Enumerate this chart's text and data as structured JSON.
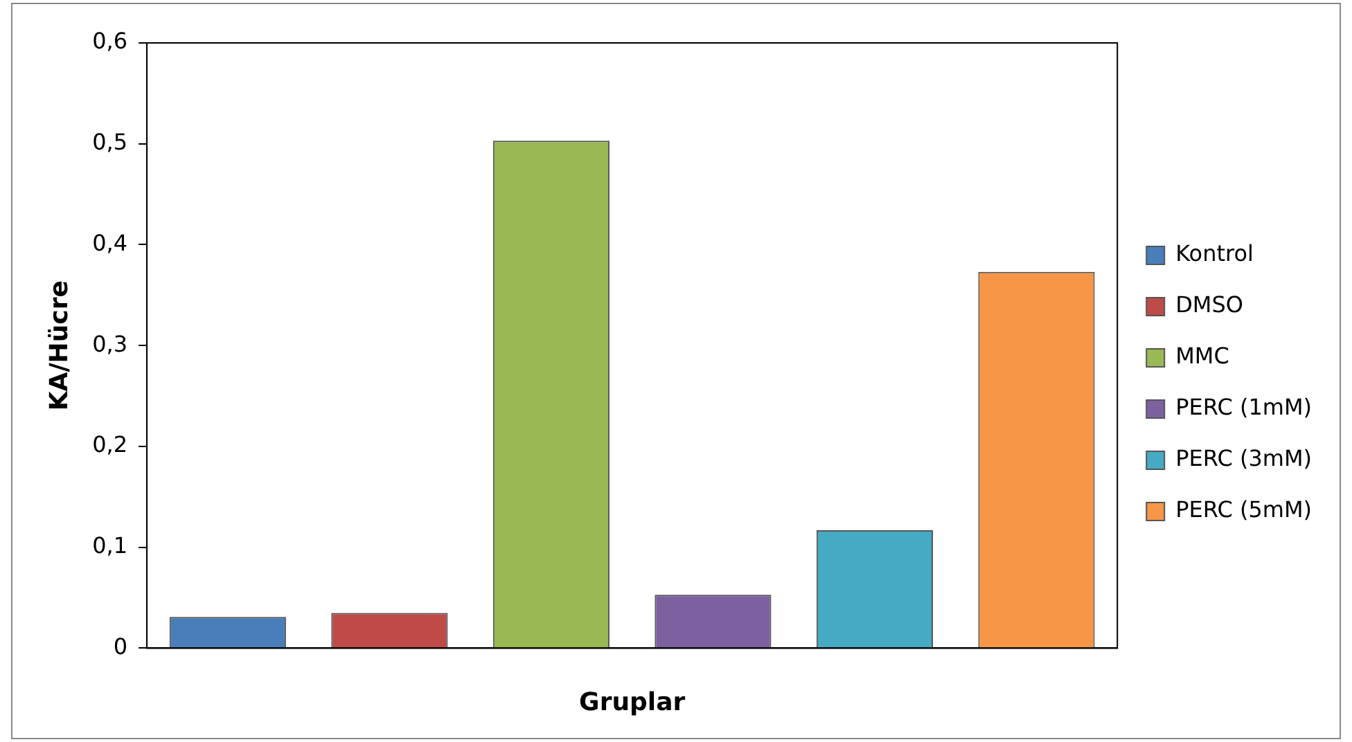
{
  "chart_data": {
    "type": "bar",
    "xlabel": "Gruplar",
    "ylabel": "KA/Hücre",
    "categories": [
      null
    ],
    "series": [
      {
        "name": "Kontrol",
        "color": "#4a7ebb",
        "values": [
          0.031
        ]
      },
      {
        "name": "DMSO",
        "color": "#be4b48",
        "values": [
          0.035
        ]
      },
      {
        "name": "MMC",
        "color": "#98b954",
        "values": [
          0.503
        ]
      },
      {
        "name": "PERC (1mM)",
        "color": "#7d60a0",
        "values": [
          0.053
        ]
      },
      {
        "name": "PERC (3mM)",
        "color": "#46aac5",
        "values": [
          0.117
        ]
      },
      {
        "name": "PERC (5mM)",
        "color": "#f79646",
        "values": [
          0.373
        ]
      }
    ],
    "ylim": [
      0,
      0.6
    ],
    "yticks": [
      0,
      {
        "value": 0.1,
        "label": "0,1"
      },
      {
        "value": 0.2,
        "label": "0,2"
      },
      {
        "value": 0.3,
        "label": "0,3"
      },
      {
        "value": 0.4,
        "label": "0,4"
      },
      {
        "value": 0.5,
        "label": "0,5"
      },
      {
        "value": 0.6,
        "label": "0,6"
      }
    ],
    "grid": false,
    "legend": "right"
  }
}
